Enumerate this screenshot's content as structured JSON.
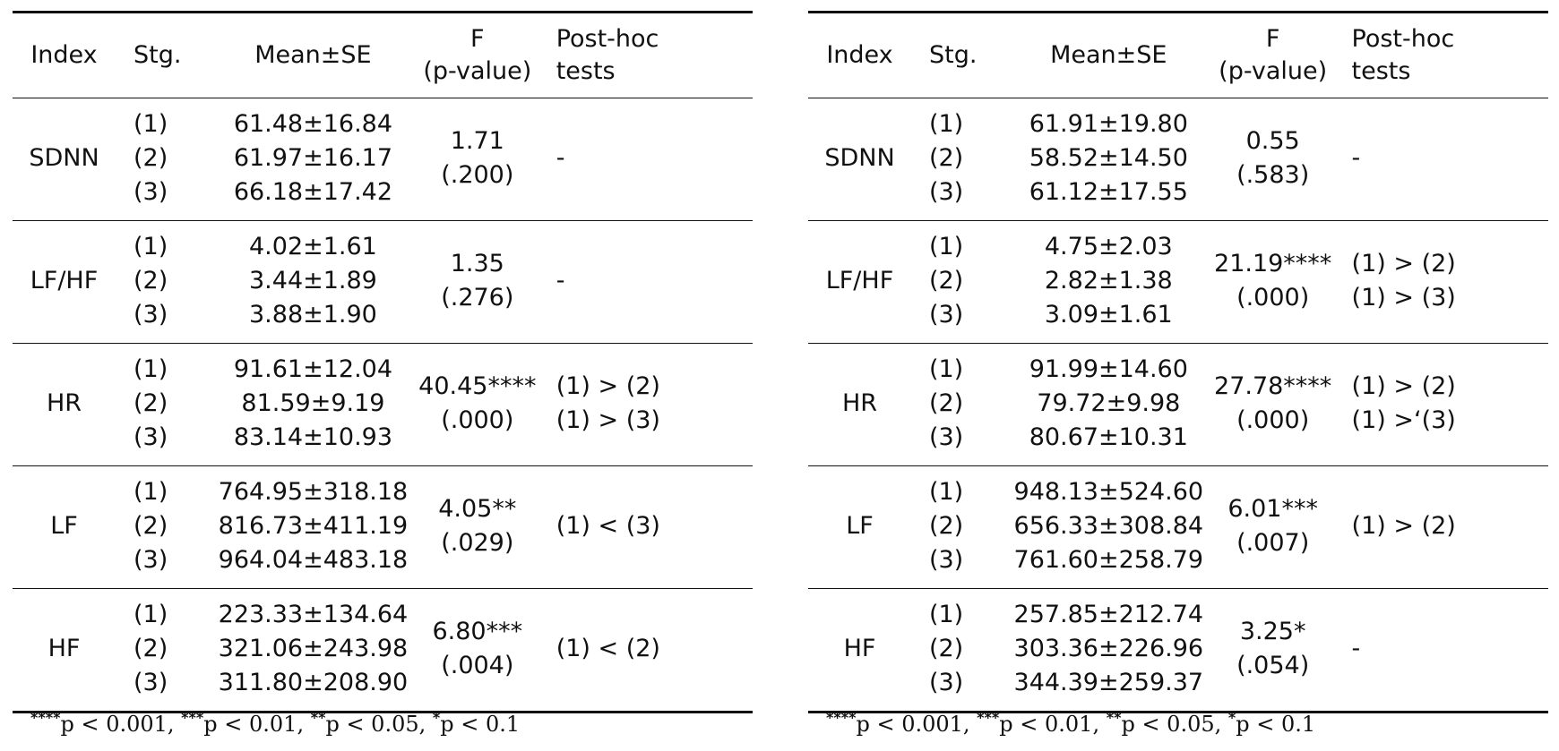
{
  "tables": [
    {
      "headers": {
        "index": "Index",
        "stage": "Stg.",
        "mean": "Mean±SE",
        "f_line1": "F",
        "f_line2": "(p-value)",
        "posthoc_line1": "Post-hoc",
        "posthoc_line2": "tests"
      },
      "rows": [
        {
          "index": "SDNN",
          "stages": [
            "(1)",
            "(2)",
            "(3)"
          ],
          "means": [
            "61.48±16.84",
            "61.97±16.17",
            "66.18±17.42"
          ],
          "f": "1.71",
          "p": "(.200)",
          "posthoc": [
            "-"
          ]
        },
        {
          "index": "LF/HF",
          "stages": [
            "(1)",
            "(2)",
            "(3)"
          ],
          "means": [
            "4.02±1.61",
            "3.44±1.89",
            "3.88±1.90"
          ],
          "f": "1.35",
          "p": "(.276)",
          "posthoc": [
            "-"
          ]
        },
        {
          "index": "HR",
          "stages": [
            "(1)",
            "(2)",
            "(3)"
          ],
          "means": [
            "91.61±12.04",
            "81.59±9.19",
            "83.14±10.93"
          ],
          "f": "40.45****",
          "p": "(.000)",
          "posthoc": [
            "(1) > (2)",
            "(1) > (3)"
          ]
        },
        {
          "index": "LF",
          "stages": [
            "(1)",
            "(2)",
            "(3)"
          ],
          "means": [
            "764.95±318.18",
            "816.73±411.19",
            "964.04±483.18"
          ],
          "f": "4.05**",
          "p": "(.029)",
          "posthoc": [
            "(1) < (3)"
          ]
        },
        {
          "index": "HF",
          "stages": [
            "(1)",
            "(2)",
            "(3)"
          ],
          "means": [
            "223.33±134.64",
            "321.06±243.98",
            "311.80±208.90"
          ],
          "f": "6.80***",
          "p": "(.004)",
          "posthoc": [
            "(1) < (2)"
          ]
        }
      ],
      "footnote": [
        {
          "stars": "****",
          "text": "p < 0.001, "
        },
        {
          "stars": "***",
          "text": "p < 0.01, "
        },
        {
          "stars": "**",
          "text": "p < 0.05, "
        },
        {
          "stars": "*",
          "text": "p < 0.1"
        }
      ]
    },
    {
      "headers": {
        "index": "Index",
        "stage": "Stg.",
        "mean": "Mean±SE",
        "f_line1": "F",
        "f_line2": "(p-value)",
        "posthoc_line1": "Post-hoc",
        "posthoc_line2": "tests"
      },
      "rows": [
        {
          "index": "SDNN",
          "stages": [
            "(1)",
            "(2)",
            "(3)"
          ],
          "means": [
            "61.91±19.80",
            "58.52±14.50",
            "61.12±17.55"
          ],
          "f": "0.55",
          "p": "(.583)",
          "posthoc": [
            "-"
          ]
        },
        {
          "index": "LF/HF",
          "stages": [
            "(1)",
            "(2)",
            "(3)"
          ],
          "means": [
            "4.75±2.03",
            "2.82±1.38",
            "3.09±1.61"
          ],
          "f": "21.19****",
          "p": "(.000)",
          "posthoc": [
            "(1) > (2)",
            "(1) > (3)"
          ]
        },
        {
          "index": "HR",
          "stages": [
            "(1)",
            "(2)",
            "(3)"
          ],
          "means": [
            "91.99±14.60",
            "79.72±9.98",
            "80.67±10.31"
          ],
          "f": "27.78****",
          "p": "(.000)",
          "posthoc": [
            "(1) > (2)",
            "(1) >‘(3)"
          ]
        },
        {
          "index": "LF",
          "stages": [
            "(1)",
            "(2)",
            "(3)"
          ],
          "means": [
            "948.13±524.60",
            "656.33±308.84",
            "761.60±258.79"
          ],
          "f": "6.01***",
          "p": "(.007)",
          "posthoc": [
            "(1) > (2)"
          ]
        },
        {
          "index": "HF",
          "stages": [
            "(1)",
            "(2)",
            "(3)"
          ],
          "means": [
            "257.85±212.74",
            "303.36±226.96",
            "344.39±259.37"
          ],
          "f": "3.25*",
          "p": "(.054)",
          "posthoc": [
            "-"
          ]
        }
      ],
      "footnote": [
        {
          "stars": "****",
          "text": "p < 0.001, "
        },
        {
          "stars": "***",
          "text": "p < 0.01, "
        },
        {
          "stars": "**",
          "text": "p < 0.05, "
        },
        {
          "stars": "*",
          "text": "p < 0.1"
        }
      ]
    }
  ]
}
